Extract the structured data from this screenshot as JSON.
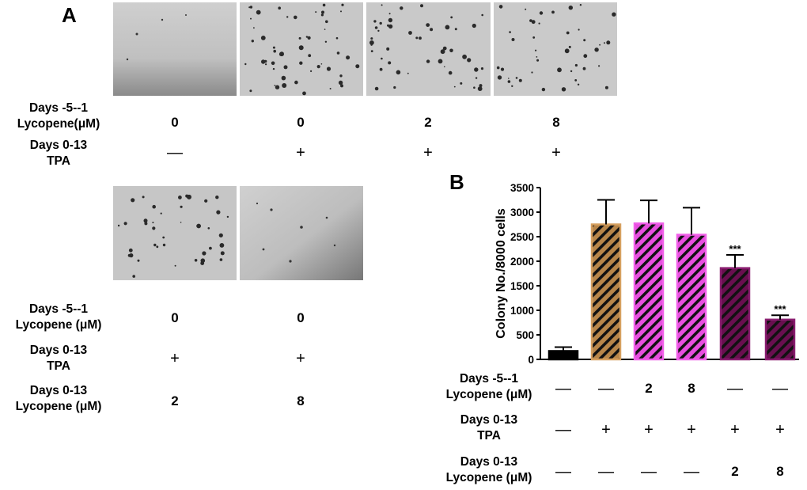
{
  "panel_a": {
    "letter": "A",
    "top_rows": [
      {
        "line1": "Days -5--1",
        "line2": "Lycopene(μM)",
        "values": [
          "0",
          "0",
          "2",
          "8"
        ]
      },
      {
        "line1": "Days 0-13",
        "line2": "TPA",
        "values": [
          "—",
          "+",
          "+",
          "+"
        ]
      }
    ],
    "bottom_rows": [
      {
        "line1": "Days -5--1",
        "line2": "Lycopene (μM)",
        "values": [
          "0",
          "0"
        ]
      },
      {
        "line1": "Days 0-13",
        "line2": "TPA",
        "values": [
          "+",
          "+"
        ]
      },
      {
        "line1": "Days 0-13",
        "line2": "Lycopene (μM)",
        "values": [
          "2",
          "8"
        ]
      }
    ]
  },
  "panel_b": {
    "letter": "B",
    "rows": [
      {
        "line1": "Days -5--1",
        "line2": "Lycopene (μM)",
        "values": [
          "—",
          "—",
          "2",
          "8",
          "—",
          "—"
        ]
      },
      {
        "line1": "Days 0-13",
        "line2": "TPA",
        "values": [
          "—",
          "+",
          "+",
          "+",
          "+",
          "+"
        ]
      },
      {
        "line1": "Days 0-13",
        "line2": "Lycopene (μM)",
        "values": [
          "—",
          "—",
          "—",
          "—",
          "2",
          "8"
        ]
      }
    ]
  },
  "chart_data": {
    "type": "bar",
    "ylabel": "Colony No./8000 cells",
    "ylim": [
      0,
      3500
    ],
    "yticks": [
      0,
      500,
      1000,
      1500,
      2000,
      2500,
      3000,
      3500
    ],
    "values": [
      170,
      2750,
      2770,
      2540,
      1860,
      810
    ],
    "errors": [
      80,
      500,
      470,
      550,
      270,
      90
    ],
    "significance": [
      "",
      "",
      "",
      "",
      "***",
      "***"
    ],
    "bar_colors": [
      "#000000",
      "#b8864a",
      "#e84ee0",
      "#e84ee0",
      "#6a0f50",
      "#6a0f50"
    ],
    "bar_edge_colors": [
      "#000000",
      "#d6a060",
      "#f060e8",
      "#f060e8",
      "#8a1e70",
      "#8a1e70"
    ],
    "hatched": [
      false,
      true,
      true,
      true,
      true,
      true
    ]
  }
}
